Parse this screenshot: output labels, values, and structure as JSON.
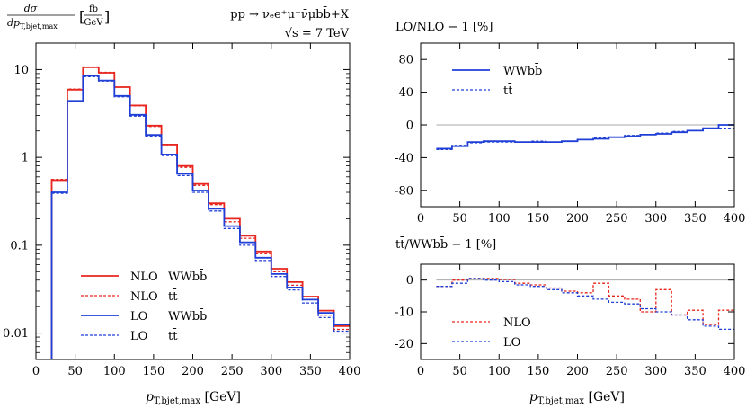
{
  "header": {
    "process": "pp → νₑe⁺μ⁻ν̄μbb̄+X",
    "energy": "√s = 7 TeV"
  },
  "colors": {
    "red": "#e8261f",
    "blue": "#1f3fd6",
    "zero_line": "#aaaaaa"
  },
  "chart_data": [
    {
      "id": "main",
      "type": "line",
      "step": true,
      "ylabel": "dσ / dp_T,bjet,max [fb / GeV]",
      "xlabel": "p_T,bjet,max [GeV]",
      "xlim": [
        0,
        400
      ],
      "ylim": [
        0.005,
        20
      ],
      "yscale": "log",
      "grid": false,
      "x_ticks": [
        0,
        50,
        100,
        150,
        200,
        250,
        300,
        350,
        400
      ],
      "y_ticks": [
        10,
        1,
        0.1,
        0.01
      ],
      "y_tick_labels": [
        "10",
        "1",
        "0.1",
        "0.01"
      ],
      "bin_edges": [
        20,
        40,
        60,
        80,
        100,
        120,
        140,
        160,
        180,
        200,
        220,
        240,
        260,
        280,
        300,
        320,
        340,
        360,
        380,
        400
      ],
      "legend_position": "bottom-left",
      "series": [
        {
          "name": "NLO WWbb̄",
          "label_a": "NLO",
          "label_b": "WWbb̄",
          "color": "red",
          "dash": false,
          "values": [
            0.55,
            5.9,
            10.6,
            9.2,
            6.3,
            3.9,
            2.3,
            1.4,
            0.8,
            0.5,
            0.3,
            0.2,
            0.128,
            0.085,
            0.054,
            0.038,
            0.026,
            0.018,
            0.012
          ]
        },
        {
          "name": "NLO tt̄",
          "label_a": "NLO",
          "label_b": "tt̄",
          "color": "red",
          "dash": true,
          "values": [
            0.56,
            6.0,
            10.7,
            9.3,
            6.3,
            3.85,
            2.25,
            1.35,
            0.77,
            0.48,
            0.29,
            0.185,
            0.12,
            0.08,
            0.05,
            0.035,
            0.024,
            0.016,
            0.011
          ]
        },
        {
          "name": "LO WWbb̄",
          "label_a": "LO",
          "label_b": "WWbb̄",
          "color": "blue",
          "dash": false,
          "values": [
            0.4,
            4.4,
            8.5,
            7.5,
            5.0,
            3.05,
            1.8,
            1.08,
            0.65,
            0.42,
            0.26,
            0.165,
            0.108,
            0.072,
            0.047,
            0.033,
            0.024,
            0.017,
            0.0125
          ]
        },
        {
          "name": "LO tt̄",
          "label_a": "LO",
          "label_b": "tt̄",
          "color": "blue",
          "dash": true,
          "values": [
            0.39,
            4.3,
            8.3,
            7.4,
            4.9,
            2.95,
            1.75,
            1.05,
            0.62,
            0.4,
            0.245,
            0.155,
            0.1,
            0.067,
            0.044,
            0.031,
            0.022,
            0.015,
            0.0105
          ]
        }
      ]
    },
    {
      "id": "ratio1",
      "type": "line",
      "step": true,
      "title": "LO/NLO − 1 [%]",
      "xlim": [
        0,
        400
      ],
      "ylim": [
        -100,
        100
      ],
      "grid": false,
      "x_ticks": [
        0,
        50,
        100,
        150,
        200,
        250,
        300,
        350,
        400
      ],
      "y_ticks": [
        80,
        40,
        0,
        -40,
        -80
      ],
      "bin_edges": [
        20,
        40,
        60,
        80,
        100,
        120,
        140,
        160,
        180,
        200,
        220,
        240,
        260,
        280,
        300,
        320,
        340,
        360,
        380,
        400
      ],
      "legend_position": "top-left",
      "series": [
        {
          "name": "WWbb̄",
          "color": "blue",
          "dash": false,
          "values": [
            -29,
            -26,
            -21,
            -20,
            -20,
            -21,
            -21,
            -21,
            -20,
            -18,
            -17,
            -15,
            -14,
            -12,
            -11,
            -9,
            -7,
            -4,
            0
          ]
        },
        {
          "name": "tt̄",
          "color": "blue",
          "dash": true,
          "values": [
            -30,
            -25,
            -22,
            -21,
            -21,
            -21,
            -20,
            -21,
            -20,
            -18,
            -16,
            -15,
            -13,
            -12,
            -10,
            -8,
            -7,
            -4,
            -4
          ]
        }
      ]
    },
    {
      "id": "ratio2",
      "type": "line",
      "step": true,
      "title": "tt̄/WWbb̄ − 1 [%]",
      "xlabel": "p_T,bjet,max [GeV]",
      "xlim": [
        0,
        400
      ],
      "ylim": [
        -25,
        5
      ],
      "grid": false,
      "x_ticks": [
        0,
        50,
        100,
        150,
        200,
        250,
        300,
        350,
        400
      ],
      "y_ticks": [
        0,
        -10,
        -20
      ],
      "bin_edges": [
        20,
        40,
        60,
        80,
        100,
        120,
        140,
        160,
        180,
        200,
        220,
        240,
        260,
        280,
        300,
        320,
        340,
        360,
        380,
        400
      ],
      "legend_position": "bottom-right",
      "series": [
        {
          "name": "NLO",
          "color": "red",
          "dash": true,
          "values": [
            -2.0,
            0.0,
            0.5,
            0.5,
            0.2,
            -1.0,
            -1.5,
            -2.5,
            -3.5,
            -4.0,
            -1.0,
            -5.0,
            -6.0,
            -10.0,
            -3.0,
            -11.0,
            -9.5,
            -14.0,
            -9.5
          ]
        },
        {
          "name": "LO",
          "color": "blue",
          "dash": true,
          "values": [
            -2.0,
            -1.0,
            0.5,
            0.0,
            -0.5,
            -1.5,
            -2.0,
            -3.0,
            -4.0,
            -5.0,
            -6.0,
            -7.0,
            -7.5,
            -9.0,
            -10.0,
            -11.0,
            -12.5,
            -14.5,
            -15.5
          ]
        }
      ]
    }
  ]
}
